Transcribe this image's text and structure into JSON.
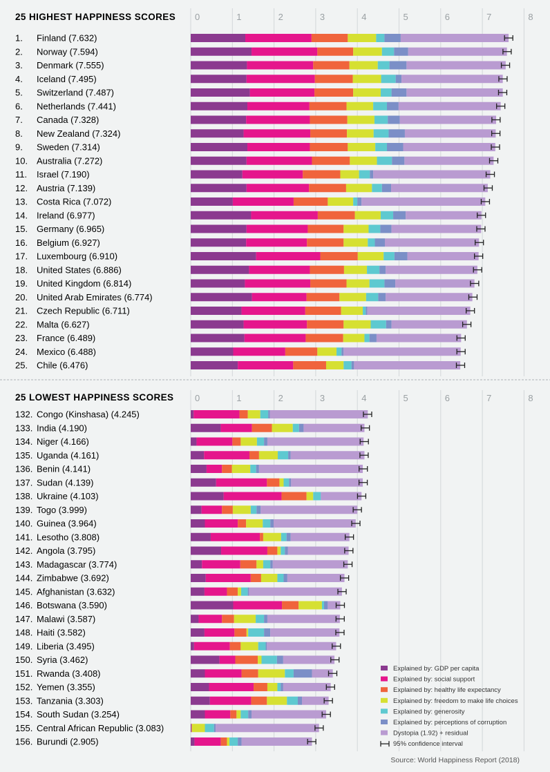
{
  "chart_data": [
    {
      "type": "bar",
      "stacked": true,
      "orientation": "horizontal",
      "title": "25 HIGHEST HAPPINESS SCORES",
      "xlim": [
        0,
        8
      ],
      "x_ticks": [
        "0",
        "1",
        "2",
        "3",
        "4",
        "5",
        "6",
        "7",
        "8"
      ],
      "grid": true,
      "rows": [
        {
          "rank": "1.",
          "label": "Finland (7.632)",
          "score": 7.632,
          "values": [
            1.31,
            1.59,
            0.87,
            0.68,
            0.2,
            0.39,
            2.59
          ]
        },
        {
          "rank": "2.",
          "label": "Norway (7.594)",
          "score": 7.594,
          "values": [
            1.46,
            1.58,
            0.86,
            0.69,
            0.29,
            0.34,
            2.37
          ]
        },
        {
          "rank": "3.",
          "label": "Denmark (7.555)",
          "score": 7.555,
          "values": [
            1.35,
            1.59,
            0.87,
            0.68,
            0.28,
            0.41,
            2.38
          ]
        },
        {
          "rank": "4.",
          "label": "Iceland (7.495)",
          "score": 7.495,
          "values": [
            1.34,
            1.64,
            0.91,
            0.68,
            0.35,
            0.14,
            2.43
          ]
        },
        {
          "rank": "5.",
          "label": "Switzerland (7.487)",
          "score": 7.487,
          "values": [
            1.42,
            1.55,
            0.93,
            0.66,
            0.26,
            0.36,
            2.31
          ]
        },
        {
          "rank": "6.",
          "label": "Netherlands (7.441)",
          "score": 7.441,
          "values": [
            1.36,
            1.49,
            0.89,
            0.64,
            0.33,
            0.28,
            2.45
          ]
        },
        {
          "rank": "7.",
          "label": "Canada (7.328)",
          "score": 7.328,
          "values": [
            1.33,
            1.53,
            0.9,
            0.65,
            0.32,
            0.29,
            2.31
          ]
        },
        {
          "rank": "8.",
          "label": "New Zealand (7.324)",
          "score": 7.324,
          "values": [
            1.27,
            1.6,
            0.88,
            0.64,
            0.36,
            0.39,
            2.18
          ]
        },
        {
          "rank": "9.",
          "label": "Sweden (7.314)",
          "score": 7.314,
          "values": [
            1.36,
            1.5,
            0.91,
            0.66,
            0.28,
            0.39,
            2.21
          ]
        },
        {
          "rank": "10.",
          "label": "Australia (7.272)",
          "score": 7.272,
          "values": [
            1.34,
            1.57,
            0.91,
            0.65,
            0.36,
            0.3,
            2.14
          ]
        },
        {
          "rank": "11.",
          "label": "Israel (7.190)",
          "score": 7.19,
          "values": [
            1.24,
            1.45,
            0.9,
            0.45,
            0.26,
            0.08,
            2.81
          ]
        },
        {
          "rank": "12.",
          "label": "Austria (7.139)",
          "score": 7.139,
          "values": [
            1.34,
            1.5,
            0.89,
            0.62,
            0.24,
            0.22,
            2.32
          ]
        },
        {
          "rank": "13.",
          "label": "Costa Rica (7.072)",
          "score": 7.072,
          "values": [
            1.01,
            1.46,
            0.82,
            0.61,
            0.1,
            0.1,
            2.97
          ]
        },
        {
          "rank": "14.",
          "label": "Ireland (6.977)",
          "score": 6.977,
          "values": [
            1.45,
            1.6,
            0.89,
            0.62,
            0.3,
            0.3,
            1.82
          ]
        },
        {
          "rank": "15.",
          "label": "Germany (6.965)",
          "score": 6.965,
          "values": [
            1.34,
            1.47,
            0.86,
            0.6,
            0.28,
            0.27,
            2.15
          ]
        },
        {
          "rank": "16.",
          "label": "Belgium (6.927)",
          "score": 6.927,
          "values": [
            1.33,
            1.46,
            0.88,
            0.58,
            0.17,
            0.24,
            2.26
          ]
        },
        {
          "rank": "17.",
          "label": "Luxembourg (6.910)",
          "score": 6.91,
          "values": [
            1.57,
            1.54,
            0.9,
            0.62,
            0.26,
            0.31,
            1.71
          ]
        },
        {
          "rank": "18.",
          "label": "United States (6.886)",
          "score": 6.886,
          "values": [
            1.4,
            1.46,
            0.82,
            0.55,
            0.3,
            0.15,
            2.2
          ]
        },
        {
          "rank": "19.",
          "label": "United Kingdom (6.814)",
          "score": 6.814,
          "values": [
            1.3,
            1.57,
            0.87,
            0.55,
            0.36,
            0.26,
            1.9
          ]
        },
        {
          "rank": "20.",
          "label": "United Arab Emirates (6.774)",
          "score": 6.774,
          "values": [
            1.47,
            1.31,
            0.79,
            0.64,
            0.29,
            0.18,
            2.08
          ]
        },
        {
          "rank": "21.",
          "label": "Czech Republic (6.711)",
          "score": 6.711,
          "values": [
            1.22,
            1.53,
            0.86,
            0.52,
            0.07,
            0.04,
            2.47
          ]
        },
        {
          "rank": "22.",
          "label": "Malta (6.627)",
          "score": 6.627,
          "values": [
            1.27,
            1.52,
            0.88,
            0.65,
            0.37,
            0.13,
            1.81
          ]
        },
        {
          "rank": "23.",
          "label": "France (6.489)",
          "score": 6.489,
          "values": [
            1.29,
            1.47,
            0.9,
            0.51,
            0.12,
            0.17,
            2.03
          ]
        },
        {
          "rank": "24.",
          "label": "Mexico (6.488)",
          "score": 6.488,
          "values": [
            1.02,
            1.25,
            0.77,
            0.46,
            0.12,
            0.05,
            2.81
          ]
        },
        {
          "rank": "25.",
          "label": "Chile (6.476)",
          "score": 6.476,
          "values": [
            1.13,
            1.33,
            0.79,
            0.42,
            0.19,
            0.06,
            2.55
          ]
        }
      ]
    },
    {
      "type": "bar",
      "stacked": true,
      "orientation": "horizontal",
      "title": "25 LOWEST HAPPINESS SCORES",
      "xlim": [
        0,
        8
      ],
      "x_ticks": [
        "0",
        "1",
        "2",
        "3",
        "4",
        "5",
        "6",
        "7",
        "8"
      ],
      "grid": true,
      "rows": [
        {
          "rank": "132.",
          "label": "Congo (Kinshasa) (4.245)",
          "score": 4.245,
          "values": [
            0.07,
            1.1,
            0.2,
            0.3,
            0.19,
            0.04,
            2.35
          ]
        },
        {
          "rank": "133.",
          "label": "India (4.190)",
          "score": 4.19,
          "values": [
            0.72,
            0.75,
            0.48,
            0.5,
            0.15,
            0.11,
            1.46
          ]
        },
        {
          "rank": "134.",
          "label": "Niger (4.166)",
          "score": 4.166,
          "values": [
            0.14,
            0.86,
            0.2,
            0.39,
            0.17,
            0.08,
            2.31
          ]
        },
        {
          "rank": "135.",
          "label": "Uganda (4.161)",
          "score": 4.161,
          "values": [
            0.32,
            1.09,
            0.23,
            0.45,
            0.25,
            0.06,
            1.77
          ]
        },
        {
          "rank": "136.",
          "label": "Benin (4.141)",
          "score": 4.141,
          "values": [
            0.38,
            0.37,
            0.24,
            0.44,
            0.14,
            0.07,
            2.49
          ]
        },
        {
          "rank": "137.",
          "label": "Sudan (4.139)",
          "score": 4.139,
          "values": [
            0.61,
            1.22,
            0.3,
            0.1,
            0.13,
            0.05,
            1.72
          ]
        },
        {
          "rank": "138.",
          "label": "Ukraine (4.103)",
          "score": 4.103,
          "values": [
            0.79,
            1.39,
            0.6,
            0.16,
            0.18,
            0.01,
            0.97
          ]
        },
        {
          "rank": "139.",
          "label": "Togo (3.999)",
          "score": 3.999,
          "values": [
            0.26,
            0.49,
            0.26,
            0.43,
            0.14,
            0.1,
            2.32
          ]
        },
        {
          "rank": "140.",
          "label": "Guinea (3.964)",
          "score": 3.964,
          "values": [
            0.34,
            0.79,
            0.2,
            0.4,
            0.18,
            0.08,
            1.97
          ]
        },
        {
          "rank": "141.",
          "label": "Lesotho (3.808)",
          "score": 3.808,
          "values": [
            0.48,
            1.18,
            0.08,
            0.43,
            0.13,
            0.1,
            1.41
          ]
        },
        {
          "rank": "142.",
          "label": "Angola (3.795)",
          "score": 3.795,
          "values": [
            0.73,
            1.11,
            0.24,
            0.08,
            0.1,
            0.07,
            1.46
          ]
        },
        {
          "rank": "143.",
          "label": "Madagascar (3.774)",
          "score": 3.774,
          "values": [
            0.27,
            0.92,
            0.39,
            0.16,
            0.17,
            0.06,
            1.8
          ]
        },
        {
          "rank": "144.",
          "label": "Zimbabwe (3.692)",
          "score": 3.692,
          "values": [
            0.36,
            1.08,
            0.25,
            0.39,
            0.15,
            0.09,
            1.37
          ]
        },
        {
          "rank": "145.",
          "label": "Afghanistan (3.632)",
          "score": 3.632,
          "values": [
            0.33,
            0.54,
            0.26,
            0.08,
            0.16,
            0.03,
            2.23
          ]
        },
        {
          "rank": "146.",
          "label": "Botswana (3.590)",
          "score": 3.59,
          "values": [
            1.02,
            1.17,
            0.4,
            0.56,
            0.05,
            0.09,
            0.3
          ]
        },
        {
          "rank": "147.",
          "label": "Malawi (3.587)",
          "score": 3.587,
          "values": [
            0.19,
            0.56,
            0.29,
            0.52,
            0.2,
            0.08,
            1.74
          ]
        },
        {
          "rank": "148.",
          "label": "Haiti (3.582)",
          "score": 3.582,
          "values": [
            0.33,
            0.72,
            0.29,
            0.04,
            0.38,
            0.15,
            1.66
          ]
        },
        {
          "rank": "149.",
          "label": "Liberia (3.495)",
          "score": 3.495,
          "values": [
            0.08,
            0.86,
            0.26,
            0.42,
            0.18,
            0.03,
            1.66
          ]
        },
        {
          "rank": "150.",
          "label": "Syria (3.462)",
          "score": 3.462,
          "values": [
            0.69,
            0.38,
            0.54,
            0.09,
            0.37,
            0.15,
            1.23
          ]
        },
        {
          "rank": "151.",
          "label": "Rwanda (3.408)",
          "score": 3.408,
          "values": [
            0.34,
            0.88,
            0.4,
            0.64,
            0.21,
            0.44,
            0.5
          ]
        },
        {
          "rank": "152.",
          "label": "Yemen (3.355)",
          "score": 3.355,
          "values": [
            0.44,
            1.07,
            0.33,
            0.24,
            0.08,
            0.06,
            1.14
          ]
        },
        {
          "rank": "153.",
          "label": "Tanzania (3.303)",
          "score": 3.303,
          "values": [
            0.46,
            0.99,
            0.38,
            0.48,
            0.26,
            0.1,
            0.64
          ]
        },
        {
          "rank": "154.",
          "label": "South Sudan (3.254)",
          "score": 3.254,
          "values": [
            0.34,
            0.61,
            0.15,
            0.1,
            0.18,
            0.08,
            1.79
          ]
        },
        {
          "rank": "155.",
          "label": "Central African Republic (3.083)",
          "score": 3.083,
          "values": [
            0.02,
            0.0,
            0.01,
            0.31,
            0.22,
            0.04,
            2.48
          ]
        },
        {
          "rank": "156.",
          "label": "Burundi (2.905)",
          "score": 2.905,
          "values": [
            0.09,
            0.63,
            0.15,
            0.06,
            0.2,
            0.09,
            1.69
          ]
        }
      ]
    }
  ],
  "legend": [
    {
      "label": "Explained by: GDP per capita",
      "color": "#8b3a8f"
    },
    {
      "label": "Explained by: social support",
      "color": "#e5168c"
    },
    {
      "label": "Explained by: healthy life expectancy",
      "color": "#f0643c"
    },
    {
      "label": "Explained by: freedom to make life choices",
      "color": "#d6e032"
    },
    {
      "label": "Explained by: generosity",
      "color": "#5ec9d0"
    },
    {
      "label": "Explained by: perceptions of corruption",
      "color": "#7b8fc7"
    },
    {
      "label": "Dystopia (1.92) + residual",
      "color": "#b99bd1"
    }
  ],
  "ci_legend_label": "95% confidence interval",
  "legend_placement": "bottom-right",
  "source": "Source: World Happiness Report (2018)"
}
